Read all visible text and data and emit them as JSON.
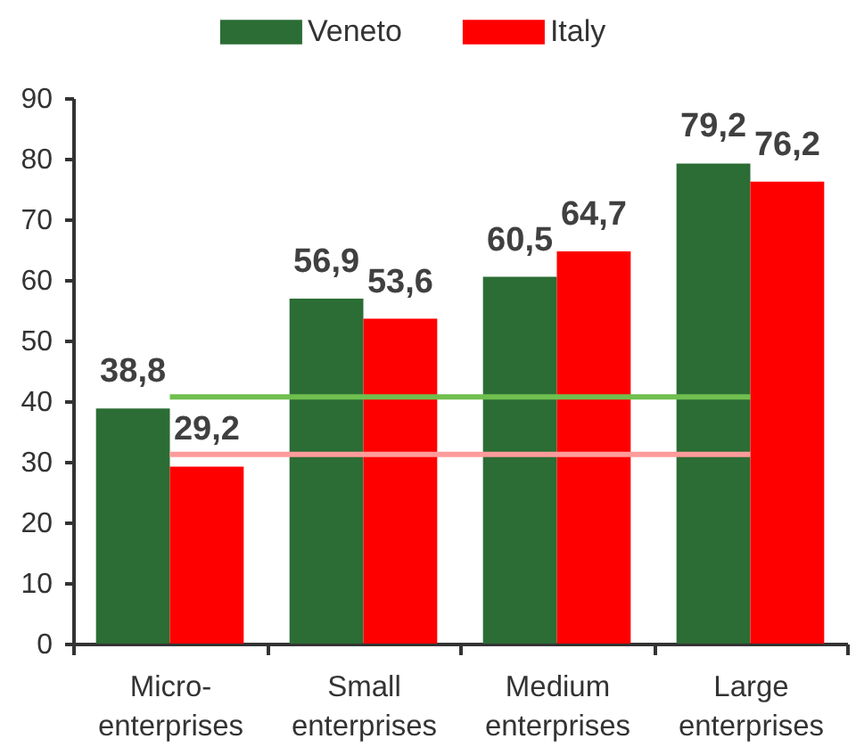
{
  "chart_data": {
    "type": "bar",
    "categories": [
      "Micro-enterprises",
      "Small enterprises",
      "Medium enterprises",
      "Large enterprises"
    ],
    "ylim": [
      0,
      90
    ],
    "yticks": [
      0,
      10,
      20,
      30,
      40,
      50,
      60,
      70,
      80,
      90
    ],
    "legend": "top",
    "series": [
      {
        "name": "Veneto",
        "color": "#2b6d34",
        "values": [
          38.8,
          56.9,
          60.5,
          79.2
        ],
        "value_labels": [
          "38,8",
          "56,9",
          "60,5",
          "79,2"
        ]
      },
      {
        "name": "Italy",
        "color": "#ff0000",
        "values": [
          29.2,
          53.6,
          64.7,
          76.2
        ],
        "value_labels": [
          "29,2",
          "53,6",
          "64,7",
          "76,2"
        ]
      },
      {
        "type": "line",
        "color": "#70bf4f",
        "values": [
          40.7,
          40.7,
          40.7,
          40.7
        ]
      },
      {
        "type": "line",
        "color": "#ff9b9b",
        "values": [
          31.2,
          31.2,
          31.2,
          31.2
        ]
      }
    ]
  }
}
